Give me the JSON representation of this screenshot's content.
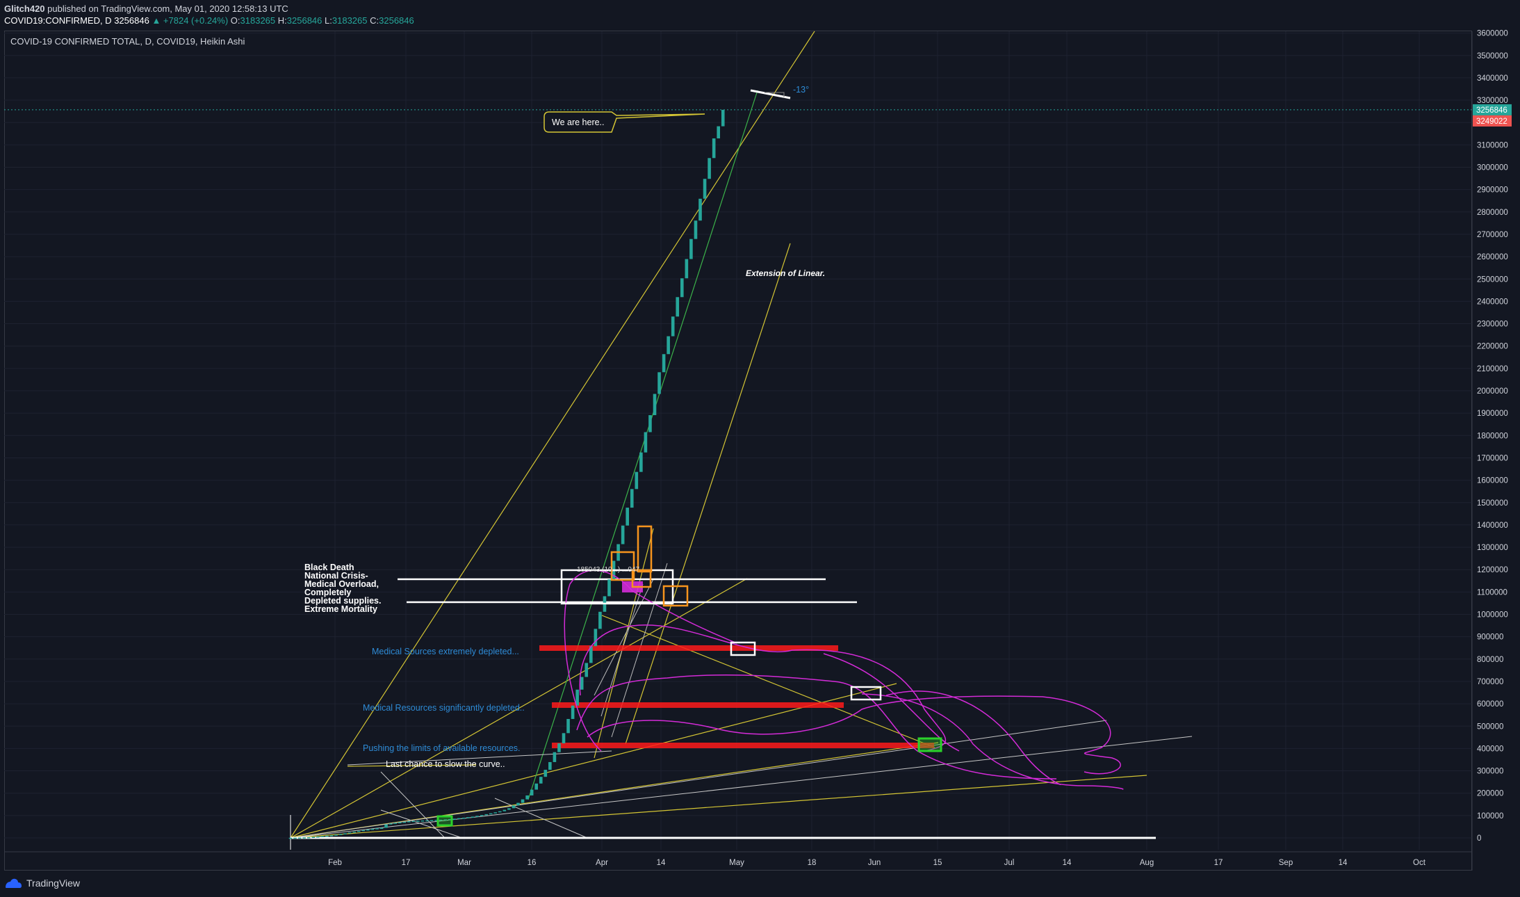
{
  "header": {
    "author": "Glitch420",
    "published": "published on TradingView.com, May 01, 2020 12:58:13 UTC",
    "symbol": "COVID19:CONFIRMED, D",
    "last": "3256846",
    "change": "▲ +7824 (+0.24%)",
    "o_label": "O:",
    "o": "3183265",
    "h_label": "H:",
    "h": "3256846",
    "l_label": "L:",
    "l": "3183265",
    "c_label": "C:",
    "c": "3256846"
  },
  "chart_title": "COVID-19 CONFIRMED TOTAL, D, COVID19, Heikin Ashi",
  "footer": {
    "brand": "TradingView"
  },
  "colors": {
    "background": "#131722",
    "grid": "#1e2230",
    "candle": "#26a69a",
    "white": "#ffffff",
    "yellow": "#d4c534",
    "green": "#3bb34a",
    "magenta": "#d42bd8",
    "red": "#ff1a1a",
    "orange": "#f7941d",
    "blue_text": "#2e8bd6",
    "price_tag_green": "#26a69a",
    "price_tag_red": "#ef5350"
  },
  "chart_data": {
    "type": "candlestick",
    "style": "Heikin Ashi",
    "y_range": [
      -100000,
      3700000
    ],
    "y_ticks": [
      0,
      100000,
      200000,
      300000,
      400000,
      500000,
      600000,
      700000,
      800000,
      900000,
      1000000,
      1100000,
      1200000,
      1300000,
      1400000,
      1500000,
      1600000,
      1700000,
      1800000,
      1900000,
      2000000,
      2100000,
      2200000,
      2300000,
      2400000,
      2500000,
      2600000,
      2700000,
      2800000,
      2900000,
      3000000,
      3100000,
      3200000,
      3300000,
      3400000,
      3500000,
      3600000
    ],
    "x_labels": [
      "Feb",
      "17",
      "Mar",
      "16",
      "Apr",
      "14",
      "May",
      "18",
      "Jun",
      "15",
      "Jul",
      "14",
      "Aug",
      "17",
      "Sep",
      "14",
      "Oct"
    ],
    "grid": true,
    "last_price": "3256846",
    "prev_close": "3249022",
    "series": [
      {
        "values": [
          580,
          845,
          1317,
          2015,
          2800,
          4581,
          6057,
          7813,
          9821,
          11948,
          14551,
          17389,
          20628,
          24553,
          28276,
          31481,
          34886,
          37558,
          40554,
          43103,
          45171,
          60381,
          64543,
          67601,
          70029,
          72105,
          74586,
          75924,
          76763,
          77849,
          78657,
          79546,
          80415,
          81402,
          82756,
          84124,
          86013,
          88371,
          90309,
          92844,
          95124,
          98329,
          102050,
          106099,
          109991,
          114381,
          119179,
          125631,
          132758,
          145484,
          156802,
          172432,
          190012,
          215883,
          243209,
          273176,
          304607,
          339166,
          383573,
          422922,
          468656,
          532002,
          591843,
          663218,
          719996,
          782549,
          857706,
          935031,
          1011486,
          1081048,
          1156089,
          1239495,
          1314003,
          1397191,
          1477212,
          1560474,
          1637069,
          1724221,
          1815036,
          1891024,
          1986016,
          2083019,
          2164006,
          2244019,
          2332103,
          2419016,
          2503215,
          2589317,
          2679019,
          2761302,
          2859121,
          2948012,
          3041024,
          3129014,
          3183265,
          3256846
        ]
      }
    ],
    "annotations": {
      "callout": "We are here..",
      "angle": "-13°",
      "extension_label": "Extension of Linear.",
      "crisis_label": [
        "Black Death",
        "National Crisis-",
        "Medical Overload,",
        "Completely",
        "Depleted supplies.",
        "Extreme Mortality"
      ],
      "overlap_label": "185043 (10...)  ...047",
      "level_labels": [
        "Medical Sources extremely depleted...",
        "Medical Resources significantly depleted..",
        "Pushing the limits of available resources."
      ],
      "curve_label": "Last chance to slow the curve.."
    }
  }
}
